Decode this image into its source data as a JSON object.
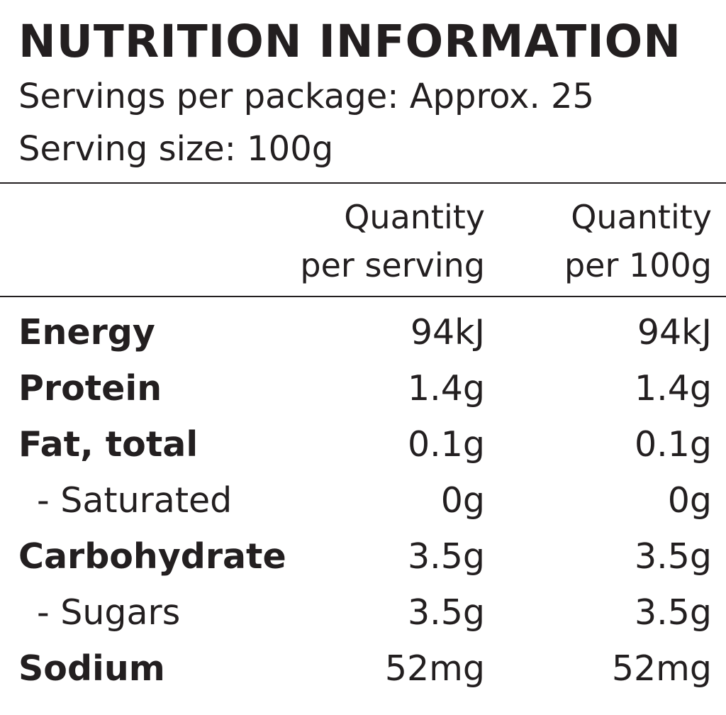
{
  "label": {
    "title": "NUTRITION INFORMATION",
    "servings_per_package": "Servings per package: Approx. 25",
    "serving_size": "Serving size: 100g"
  },
  "columns": {
    "per_serving": [
      "Quantity",
      "per serving"
    ],
    "per_100g": [
      "Quantity",
      "per 100g"
    ]
  },
  "rows": [
    {
      "name": "Energy",
      "per_serving": "94kJ",
      "per_100g": "94kJ",
      "type": "main"
    },
    {
      "name": "Protein",
      "per_serving": "1.4g",
      "per_100g": "1.4g",
      "type": "main"
    },
    {
      "name": "Fat, total",
      "per_serving": "0.1g",
      "per_100g": "0.1g",
      "type": "main"
    },
    {
      "name": "- Saturated",
      "per_serving": "0g",
      "per_100g": "0g",
      "type": "sub"
    },
    {
      "name": "Carbohydrate",
      "per_serving": "3.5g",
      "per_100g": "3.5g",
      "type": "main"
    },
    {
      "name": "- Sugars",
      "per_serving": "3.5g",
      "per_100g": "3.5g",
      "type": "sub"
    },
    {
      "name": "Sodium",
      "per_serving": "52mg",
      "per_100g": "52mg",
      "type": "main"
    }
  ]
}
